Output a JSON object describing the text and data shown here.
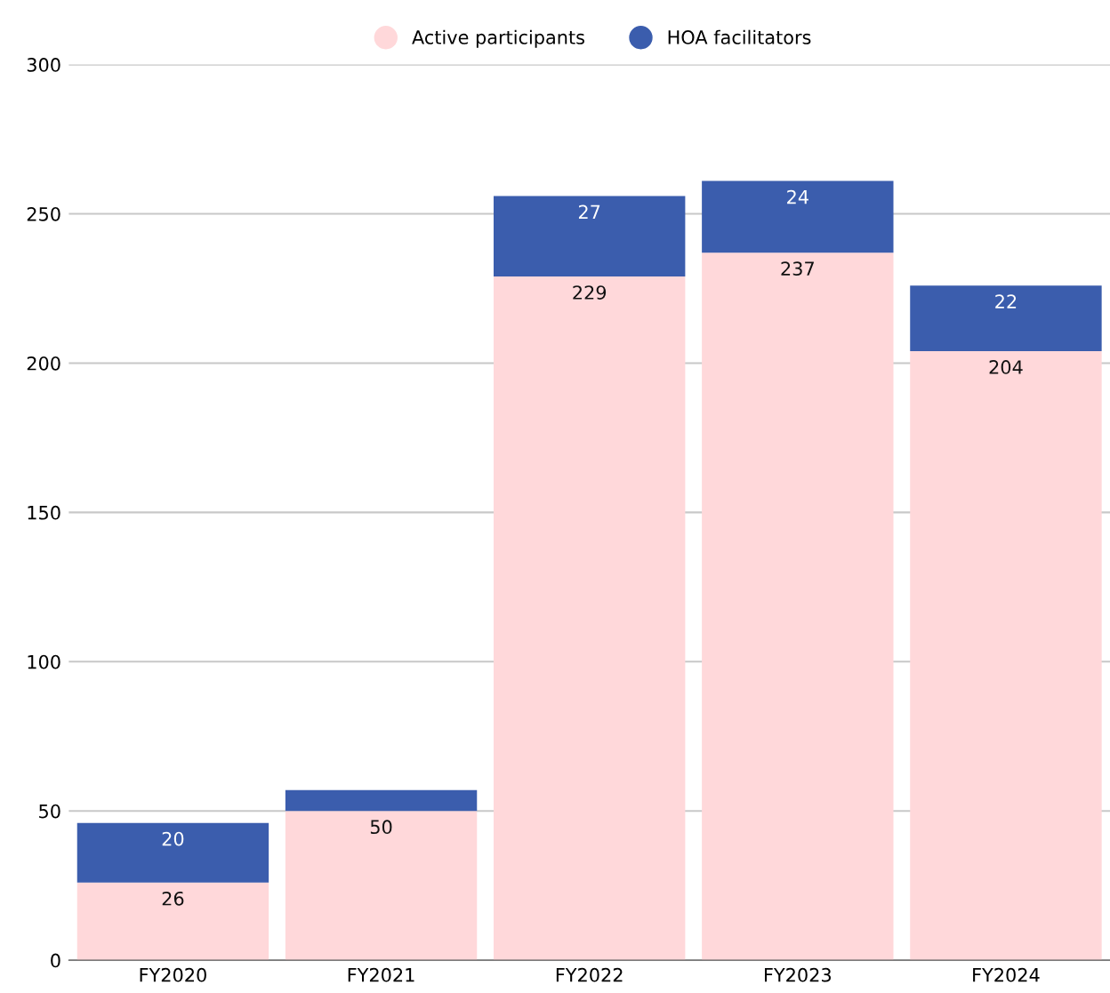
{
  "chart_data": {
    "type": "bar",
    "stacked": true,
    "categories": [
      "FY2020",
      "FY2021",
      "FY2022",
      "FY2023",
      "FY2024"
    ],
    "series": [
      {
        "name": "Active participants",
        "color": "#ffd8da",
        "values": [
          26,
          50,
          229,
          237,
          204
        ],
        "value_labels": [
          "26",
          "50",
          "229",
          "237",
          "204"
        ]
      },
      {
        "name": "HOA facilitators",
        "color": "#3b5dad",
        "values": [
          20,
          7,
          27,
          24,
          22
        ],
        "value_labels": [
          "20",
          null,
          "27",
          "24",
          "22"
        ]
      }
    ],
    "ylim": [
      0,
      300
    ],
    "yticks": [
      0,
      50,
      100,
      150,
      200,
      250,
      300
    ],
    "grid": "y",
    "legend": "top",
    "marker": "circle"
  }
}
